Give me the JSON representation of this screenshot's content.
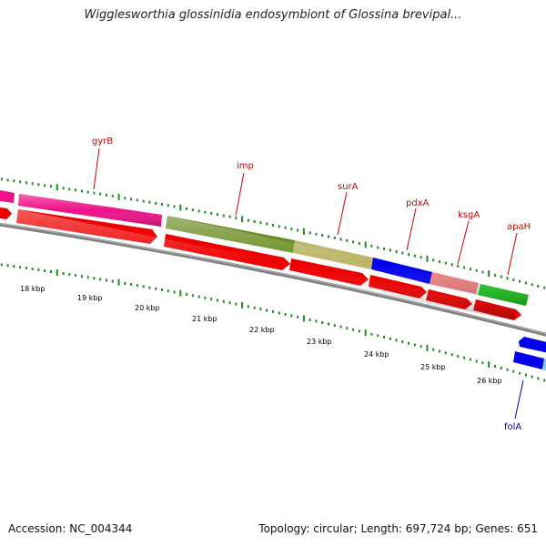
{
  "title": "Wigglesworthia glossinidia endosymbiont of Glossina brevipal...",
  "footer": {
    "accession": "Accession: NC_004344",
    "summary": "Topology: circular; Length: 697,724 bp; Genes: 651"
  },
  "colors": {
    "backbone": "#808080",
    "cds": "#ee0000",
    "cds_reverse": "#0000ee",
    "tick": "#228b22",
    "label_forward": "#cc0000",
    "label_reverse": "#0000aa"
  },
  "gene_labels": [
    {
      "name": "gyrB",
      "strand": "forward"
    },
    {
      "name": "imp",
      "strand": "forward"
    },
    {
      "name": "surA",
      "strand": "forward"
    },
    {
      "name": "pdxA",
      "strand": "forward"
    },
    {
      "name": "ksgA",
      "strand": "forward"
    },
    {
      "name": "apaH",
      "strand": "forward"
    },
    {
      "name": "folA",
      "strand": "reverse"
    }
  ],
  "kbp_labels": [
    "18 kbp",
    "19 kbp",
    "20 kbp",
    "21 kbp",
    "22 kbp",
    "23 kbp",
    "24 kbp",
    "25 kbp",
    "26 kbp"
  ],
  "feature_colors": {
    "gyrB": "#ee1188",
    "imp": "#6b8e23",
    "surA": "#bdb76b",
    "pdxA": "#0000ee",
    "ksgA": "#f08080",
    "apaH": "#22cc22",
    "folA": "#0000ee",
    "cog_unknown": "#87ceeb"
  }
}
